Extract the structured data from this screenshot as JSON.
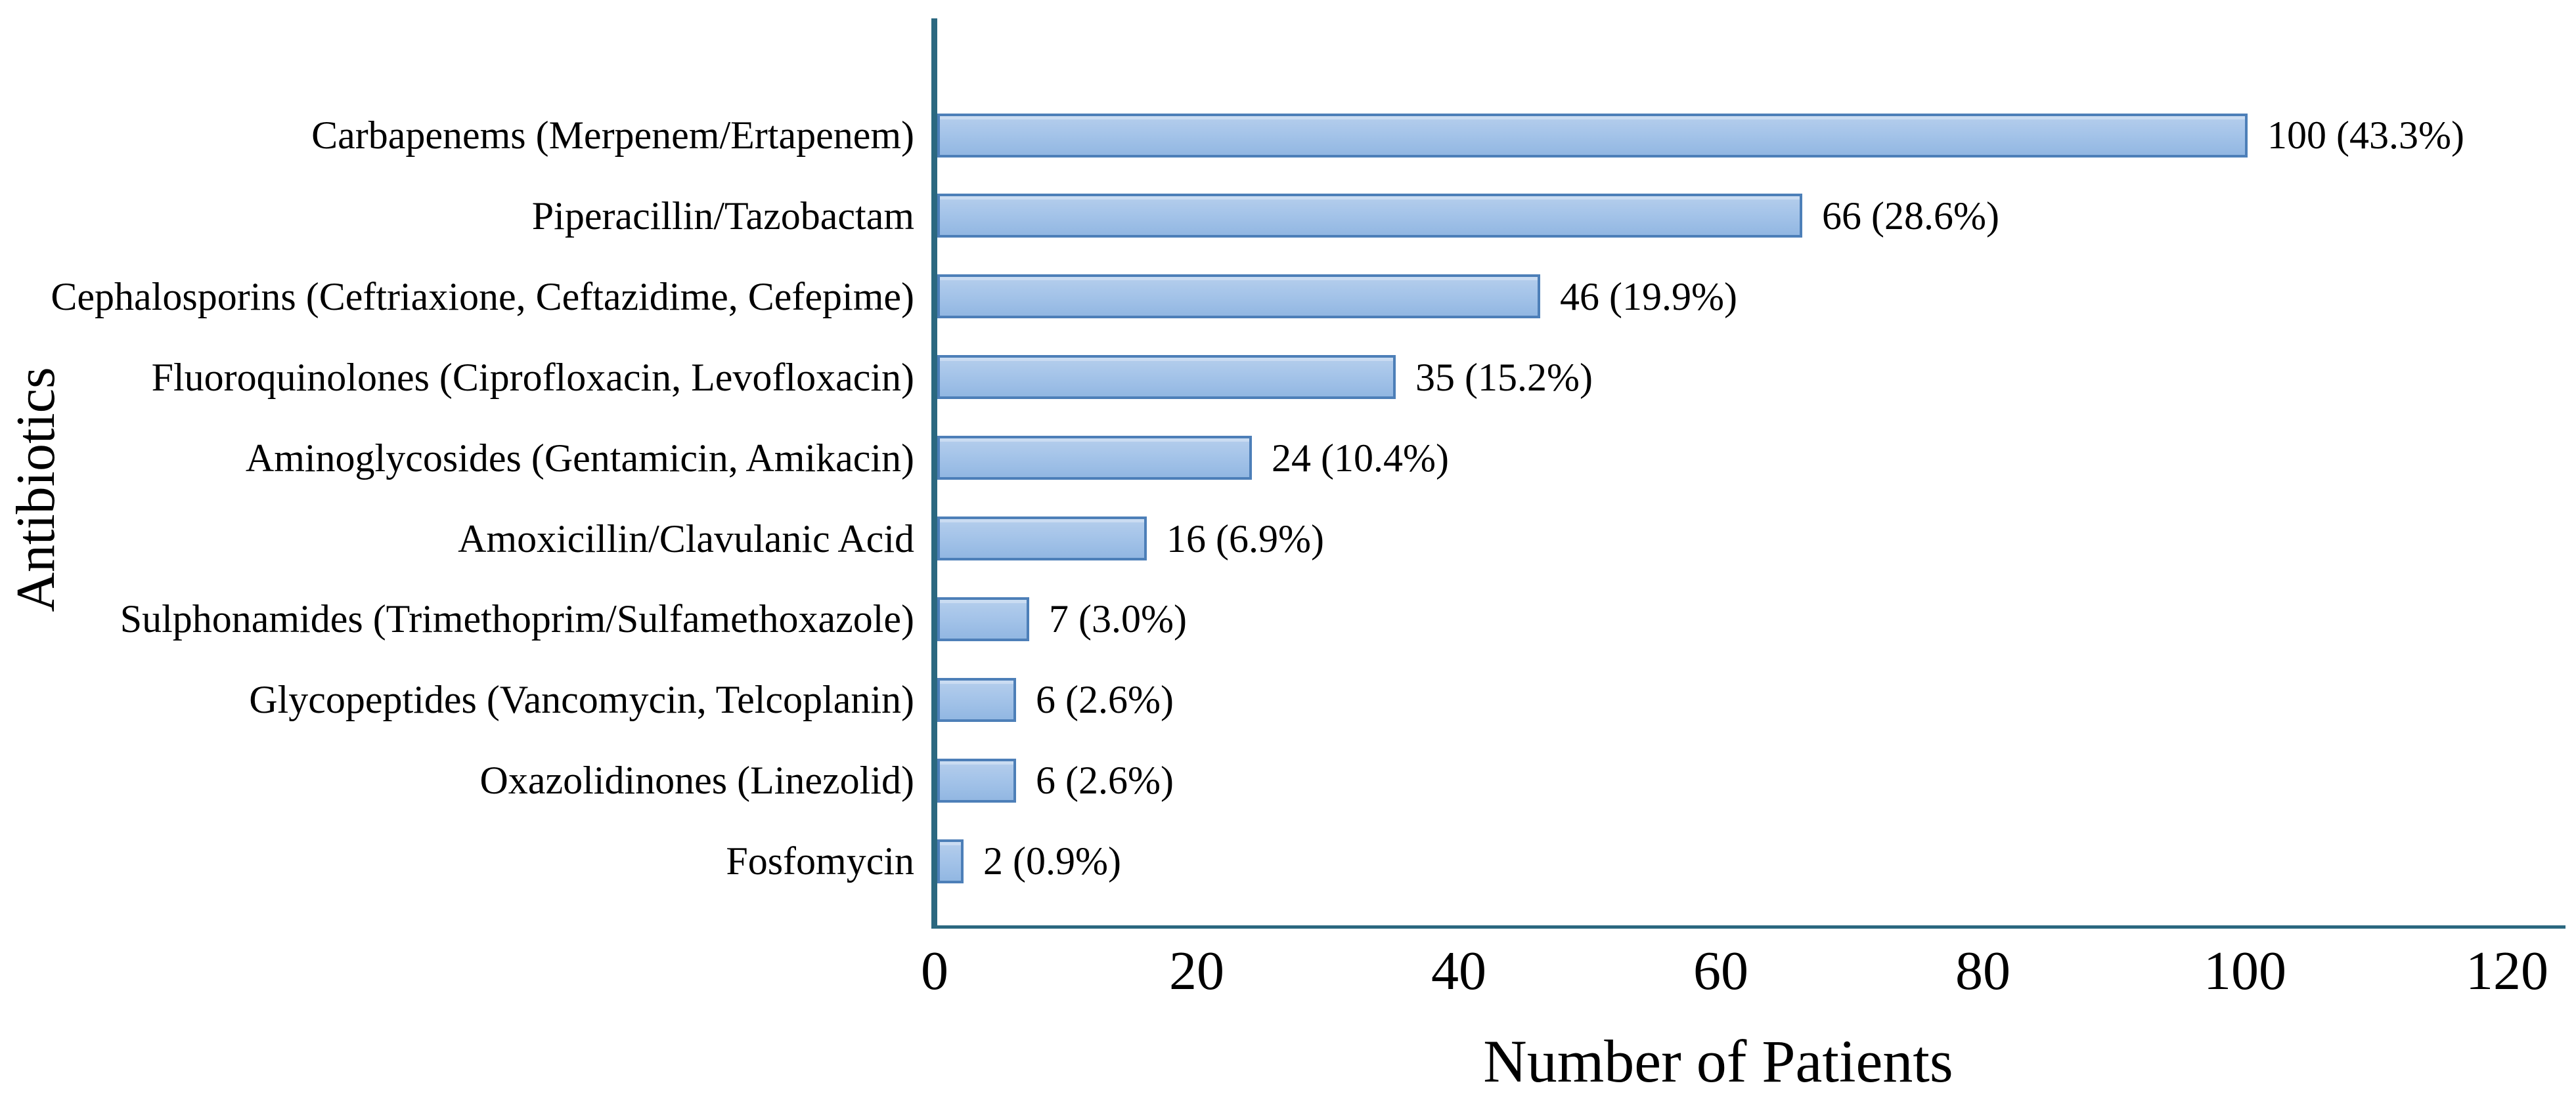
{
  "chart_data": {
    "type": "bar",
    "orientation": "horizontal",
    "title": "",
    "xlabel": "Number of Patients",
    "ylabel": "Antibiotics",
    "xlim": [
      0,
      120
    ],
    "xticks": [
      0,
      20,
      40,
      60,
      80,
      100,
      120
    ],
    "grid": false,
    "legend": false,
    "categories": [
      "Carbapenems (Merpenem/Ertapenem)",
      "Piperacillin/Tazobactam",
      "Cephalosporins (Ceftriaxione, Ceftazidime, Cefepime)",
      "Fluoroquinolones (Ciprofloxacin, Levofloxacin)",
      "Aminoglycosides (Gentamicin, Amikacin)",
      "Amoxicillin/Clavulanic Acid",
      "Sulphonamides (Trimethoprim/Sulfamethoxazole)",
      "Glycopeptides (Vancomycin, Telcoplanin)",
      "Oxazolidinones (Linezolid)",
      "Fosfomycin"
    ],
    "values": [
      100,
      66,
      46,
      35,
      24,
      16,
      7,
      6,
      6,
      2
    ],
    "bar_labels": [
      "100 (43.3%)",
      "66 (28.6%)",
      "46 (19.9%)",
      "35 (15.2%)",
      "24 (10.4%)",
      "16 (6.9%)",
      "7 (3.0%)",
      "6 (2.6%)",
      "6 (2.6%)",
      "2 (0.9%)"
    ],
    "colors": {
      "bar_fill_top": "#b5ceec",
      "bar_fill_mid": "#a5c4e9",
      "bar_fill_bottom": "#92b7e2",
      "bar_border": "#4d7fb8",
      "axis": "#2b6880",
      "text": "#000000"
    }
  }
}
